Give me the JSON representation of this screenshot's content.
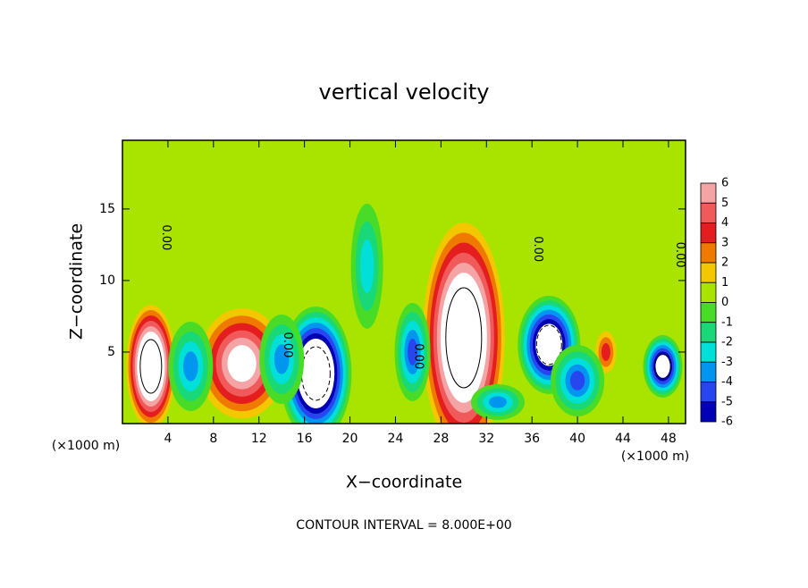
{
  "chart_data": {
    "type": "contour",
    "title": "vertical velocity",
    "x_label": "X−coordinate",
    "y_label": "Z−coordinate",
    "x_unit_label": "(×1000 m)",
    "y_unit_label": "(×1000 m)",
    "footer": "CONTOUR INTERVAL = 8.000E+00",
    "xlim": [
      0,
      49.5
    ],
    "ylim": [
      0,
      19.8
    ],
    "xticks": [
      4,
      8,
      12,
      16,
      20,
      24,
      28,
      32,
      36,
      40,
      44,
      48
    ],
    "yticks": [
      5,
      10,
      15
    ],
    "colorbar": {
      "levels": [
        6,
        5,
        4,
        3,
        2,
        1,
        0,
        -1,
        -2,
        -3,
        -4,
        -5,
        -6
      ],
      "colors": [
        "#f4a4a4",
        "#f05a5a",
        "#e41e1e",
        "#f07a00",
        "#f4c800",
        "#a8e400",
        "#48dc28",
        "#18d878",
        "#00e0d8",
        "#0096f0",
        "#2846f0",
        "#0000b4"
      ]
    },
    "features": [
      {
        "x": 2.5,
        "z": 4,
        "value": 12
      },
      {
        "x": 10.5,
        "z": 4.2,
        "value": 8
      },
      {
        "x": 17,
        "z": 3.5,
        "value": -12
      },
      {
        "x": 30,
        "z": 6,
        "value": 12
      },
      {
        "x": 37.5,
        "z": 5.5,
        "value": -10
      },
      {
        "x": 47.5,
        "z": 4,
        "value": -9
      },
      {
        "x": 6,
        "z": 4,
        "value": -4
      },
      {
        "x": 14,
        "z": 4.5,
        "value": -4
      },
      {
        "x": 25.5,
        "z": 5,
        "value": -5
      },
      {
        "x": 21.5,
        "z": 11,
        "value": -3
      },
      {
        "x": 42.5,
        "z": 5,
        "value": 4
      },
      {
        "x": 33,
        "z": 1.5,
        "value": -4
      },
      {
        "x": 40,
        "z": 3,
        "value": -5
      },
      {
        "x": 44.5,
        "z": 12.5,
        "value": 1
      }
    ],
    "contour_labels": [
      {
        "text": "0.00",
        "x": 3.8,
        "z": 13
      },
      {
        "text": "0.00",
        "x": 14.5,
        "z": 5.5
      },
      {
        "text": "0.00",
        "x": 26,
        "z": 4.7
      },
      {
        "text": "0.00",
        "x": 36.5,
        "z": 12.2
      },
      {
        "text": "0.00",
        "x": 49,
        "z": 11.8
      }
    ]
  }
}
